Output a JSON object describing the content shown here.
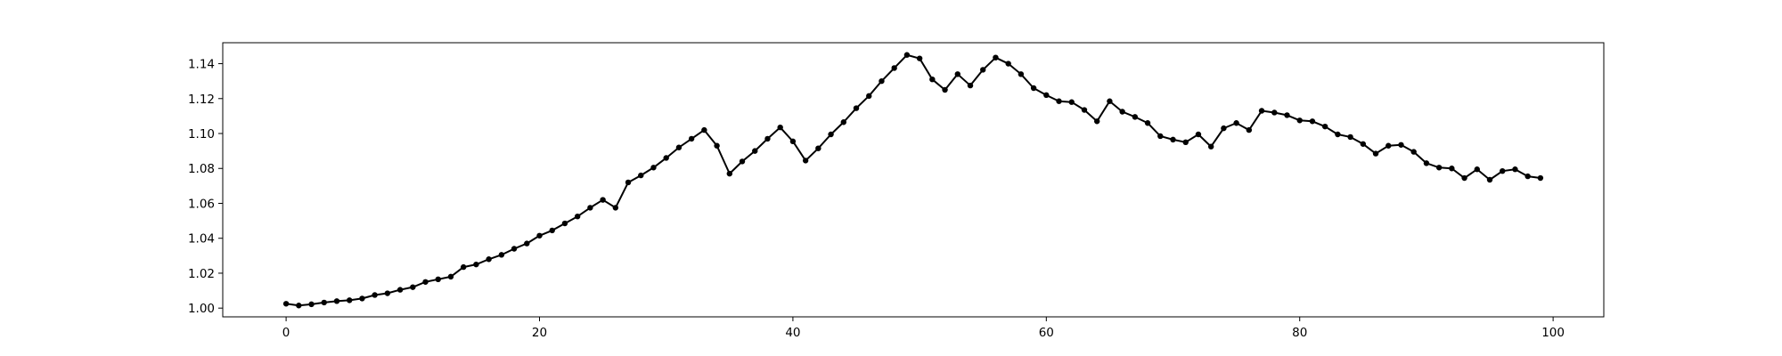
{
  "chart_data": {
    "type": "line",
    "title": "",
    "xlabel": "",
    "ylabel": "",
    "xlim": [
      -5,
      104
    ],
    "ylim": [
      0.995,
      1.152
    ],
    "xticks": [
      0,
      20,
      40,
      60,
      80,
      100
    ],
    "yticks": [
      1.0,
      1.02,
      1.04,
      1.06,
      1.08,
      1.1,
      1.12,
      1.14
    ],
    "ytick_labels": [
      "1.00",
      "1.02",
      "1.04",
      "1.06",
      "1.08",
      "1.10",
      "1.12",
      "1.14"
    ],
    "grid": false,
    "legend": "none",
    "series": [
      {
        "color": "#000000",
        "marker": "dot",
        "x": [
          0,
          1,
          2,
          3,
          4,
          5,
          6,
          7,
          8,
          9,
          10,
          11,
          12,
          13,
          14,
          15,
          16,
          17,
          18,
          19,
          20,
          21,
          22,
          23,
          24,
          25,
          26,
          27,
          28,
          29,
          30,
          31,
          32,
          33,
          34,
          35,
          36,
          37,
          38,
          39,
          40,
          41,
          42,
          43,
          44,
          45,
          46,
          47,
          48,
          49,
          50,
          51,
          52,
          53,
          54,
          55,
          56,
          57,
          58,
          59,
          60,
          61,
          62,
          63,
          64,
          65,
          66,
          67,
          68,
          69,
          70,
          71,
          72,
          73,
          74,
          75,
          76,
          77,
          78,
          79,
          80,
          81,
          82,
          83,
          84,
          85,
          86,
          87,
          88,
          89,
          90,
          91,
          92,
          93,
          94,
          95,
          96,
          97,
          98,
          99
        ],
        "y": [
          1.0025,
          1.0015,
          1.0022,
          1.0032,
          1.004,
          1.0045,
          1.0055,
          1.0075,
          1.0085,
          1.0105,
          1.012,
          1.015,
          1.0165,
          1.018,
          1.0235,
          1.025,
          1.028,
          1.0305,
          1.034,
          1.037,
          1.0415,
          1.0445,
          1.0485,
          1.0525,
          1.0575,
          1.062,
          1.0575,
          1.072,
          1.076,
          1.0805,
          1.086,
          1.092,
          1.097,
          1.102,
          1.093,
          1.077,
          1.084,
          1.09,
          1.097,
          1.1035,
          1.0955,
          1.0845,
          1.0915,
          1.0995,
          1.1065,
          1.1145,
          1.1215,
          1.13,
          1.1375,
          1.145,
          1.143,
          1.131,
          1.125,
          1.134,
          1.1275,
          1.1365,
          1.1435,
          1.14,
          1.134,
          1.126,
          1.122,
          1.1185,
          1.118,
          1.1135,
          1.107,
          1.1185,
          1.1125,
          1.1095,
          1.106,
          1.0985,
          1.0965,
          1.095,
          1.0995,
          1.0925,
          1.103,
          1.106,
          1.102,
          1.113,
          1.112,
          1.1105,
          1.1075,
          1.107,
          1.104,
          1.0995,
          1.098,
          1.094,
          1.0885,
          1.093,
          1.0935,
          1.0895,
          1.083,
          1.0805,
          1.08,
          1.0745,
          1.0795,
          1.0735,
          1.0785,
          1.0795,
          1.0755,
          1.0745
        ]
      }
    ]
  }
}
